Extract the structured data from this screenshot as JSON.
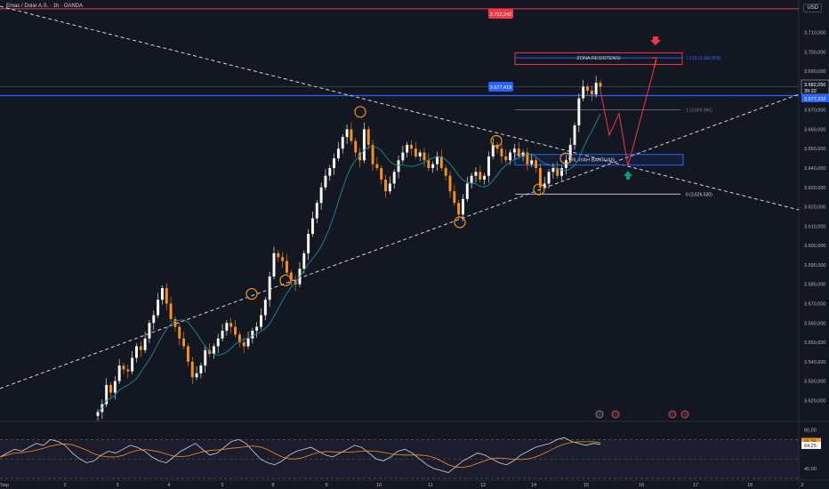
{
  "header": {
    "symbol_title": "Emas / Dolar A.S. · 1h · OANDA",
    "currency": "USD"
  },
  "chart_data": {
    "type": "candlestick",
    "instrument": "Emas / Dolar A.S.",
    "timeframe": "1h",
    "source": "OANDA",
    "price_axis": {
      "ylim": [
        3511,
        3724
      ],
      "ticks": [
        3520,
        3530,
        3540,
        3550,
        3560,
        3570,
        3580,
        3590,
        3600,
        3610,
        3620,
        3630,
        3640,
        3650,
        3660,
        3670,
        3680,
        3690,
        3700,
        3710
      ]
    },
    "x_ticks": [
      "Sep",
      "2",
      "3",
      "4",
      "5",
      "8",
      "9",
      "10",
      "11",
      "12",
      "14",
      "15",
      "16",
      "17",
      "18",
      "19",
      "2"
    ],
    "price_labels": {
      "top_alert": "3.722,242",
      "level_left": "3.677,419",
      "current_price": "3.682,050",
      "countdown": "39:32",
      "level_right": "3.677,232"
    },
    "annotations": {
      "resistance_zone": "ZONA RESISTENSI",
      "support_zone": "WILAYAH BANTUAN",
      "fib_1618": "1.618 (3,696.858)",
      "fib_1": "1 (3,669.996)",
      "fib_0": "0 (3,626.530)"
    },
    "fib_levels": [
      {
        "label": "1.618",
        "price": 3696.858
      },
      {
        "label": "1",
        "price": 3669.996
      },
      {
        "label": "0",
        "price": 3626.53
      }
    ],
    "zones": {
      "resistance": {
        "low": 3693.5,
        "high": 3699.5
      },
      "support": {
        "low": 3641.5,
        "high": 3647
      }
    },
    "horizontal_levels": [
      3722.242,
      3677.419
    ],
    "close_series": [
      3514,
      3518,
      3528,
      3524,
      3530,
      3538,
      3536,
      3535,
      3542,
      3548,
      3546,
      3552,
      3560,
      3564,
      3572,
      3578,
      3570,
      3562,
      3558,
      3552,
      3548,
      3540,
      3532,
      3534,
      3538,
      3546,
      3544,
      3548,
      3552,
      3556,
      3560,
      3558,
      3554,
      3550,
      3548,
      3552,
      3556,
      3558,
      3564,
      3572,
      3584,
      3596,
      3594,
      3592,
      3586,
      3582,
      3580,
      3588,
      3596,
      3606,
      3614,
      3622,
      3630,
      3636,
      3640,
      3645,
      3650,
      3656,
      3660,
      3654,
      3648,
      3644,
      3660,
      3652,
      3642,
      3640,
      3634,
      3628,
      3632,
      3638,
      3644,
      3648,
      3652,
      3650,
      3646,
      3648,
      3644,
      3640,
      3642,
      3646,
      3640,
      3636,
      3628,
      3622,
      3616,
      3624,
      3632,
      3636,
      3638,
      3634,
      3636,
      3646,
      3652,
      3650,
      3646,
      3644,
      3648,
      3650,
      3646,
      3648,
      3642,
      3644,
      3640,
      3630,
      3632,
      3638,
      3640,
      3636,
      3640,
      3644,
      3652,
      3662,
      3676,
      3682,
      3680,
      3678,
      3684,
      3682
    ],
    "rsi": {
      "axis_labels": [
        "80,00",
        "40,00"
      ],
      "value": "65,25",
      "signal": "64,25",
      "ylim": [
        30,
        85
      ],
      "values": [
        52,
        56,
        60,
        58,
        62,
        66,
        64,
        70,
        68,
        64,
        56,
        50,
        46,
        48,
        54,
        58,
        56,
        60,
        64,
        62,
        58,
        52,
        48,
        46,
        52,
        58,
        62,
        66,
        60,
        54,
        56,
        62,
        68,
        70,
        66,
        58,
        50,
        46,
        44,
        48,
        54,
        58,
        60,
        62,
        58,
        54,
        52,
        56,
        60,
        64,
        62,
        56,
        50,
        48,
        52,
        58,
        60,
        56,
        50,
        44,
        40,
        38,
        36,
        42,
        48,
        52,
        56,
        54,
        50,
        46,
        44,
        48,
        54,
        58,
        62,
        64,
        66,
        70,
        72,
        68,
        66,
        64,
        66,
        65
      ]
    }
  }
}
